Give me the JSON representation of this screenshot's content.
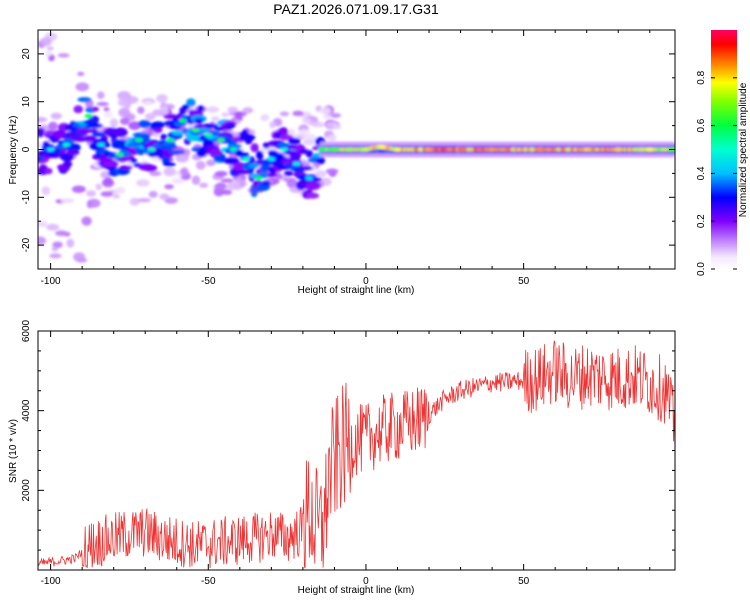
{
  "chart_data": [
    {
      "type": "heatmap",
      "title": "PAZ1.2026.071.09.17.G31",
      "xlabel": "Height of straight line (km)",
      "ylabel": "Frequency (Hz)",
      "xlim": [
        -104,
        98
      ],
      "ylim": [
        -25,
        25
      ],
      "xticks": [
        -100,
        -50,
        0,
        50
      ],
      "xtick_labels": [
        "-100",
        "-50",
        "0",
        "50"
      ],
      "yticks": [
        -20,
        -10,
        0,
        10,
        20
      ],
      "ytick_labels": [
        "-20",
        "-10",
        "0",
        "10",
        "20"
      ],
      "colorbar": {
        "label": "Normalized spectral amplitude",
        "range": [
          0.0,
          1.0
        ],
        "ticks": [
          0.0,
          0.2,
          0.4,
          0.6,
          0.8
        ],
        "tick_labels": [
          "0.0",
          "0.2",
          "0.4",
          "0.6",
          "0.8"
        ]
      },
      "ridge": [
        {
          "x": -100,
          "f": 0,
          "a": 0.3
        },
        {
          "x": -95,
          "f": 1,
          "a": 0.35
        },
        {
          "x": -88,
          "f": 7,
          "a": 0.5
        },
        {
          "x": -84,
          "f": 1,
          "a": 0.3
        },
        {
          "x": -78,
          "f": -1,
          "a": 0.45
        },
        {
          "x": -72,
          "f": 2,
          "a": 0.5
        },
        {
          "x": -68,
          "f": 0,
          "a": 0.4
        },
        {
          "x": -62,
          "f": 2,
          "a": 0.45
        },
        {
          "x": -58,
          "f": 6,
          "a": 0.5
        },
        {
          "x": -54,
          "f": 4,
          "a": 0.55
        },
        {
          "x": -50,
          "f": 3,
          "a": 0.4
        },
        {
          "x": -46,
          "f": 2,
          "a": 0.55
        },
        {
          "x": -42,
          "f": 0,
          "a": 0.4
        },
        {
          "x": -38,
          "f": -2,
          "a": 0.35
        },
        {
          "x": -34,
          "f": -6,
          "a": 0.5
        },
        {
          "x": -30,
          "f": -2,
          "a": 0.3
        },
        {
          "x": -26,
          "f": 0,
          "a": 0.35
        },
        {
          "x": -22,
          "f": -3,
          "a": 0.3
        },
        {
          "x": -18,
          "f": -6,
          "a": 0.25
        },
        {
          "x": -14,
          "f": 0,
          "a": 0.55
        },
        {
          "x": -10,
          "f": 0,
          "a": 0.6
        },
        {
          "x": -5,
          "f": 0,
          "a": 0.7
        },
        {
          "x": 0,
          "f": 0,
          "a": 0.75
        },
        {
          "x": 5,
          "f": 0.5,
          "a": 0.8
        },
        {
          "x": 10,
          "f": 0,
          "a": 0.8
        },
        {
          "x": 20,
          "f": 0,
          "a": 0.9
        },
        {
          "x": 30,
          "f": 0,
          "a": 0.95
        },
        {
          "x": 40,
          "f": 0,
          "a": 0.9
        },
        {
          "x": 55,
          "f": 0,
          "a": 0.92
        },
        {
          "x": 70,
          "f": 0,
          "a": 0.85
        },
        {
          "x": 80,
          "f": 0,
          "a": 0.85
        },
        {
          "x": 90,
          "f": 0,
          "a": 0.8
        },
        {
          "x": 97,
          "f": 0,
          "a": 0.6
        }
      ]
    },
    {
      "type": "line",
      "xlabel": "Height of straight line (km)",
      "ylabel": "SNR (10 * v/v)",
      "xlim": [
        -104,
        98
      ],
      "ylim": [
        0,
        6000
      ],
      "xticks": [
        -100,
        -50,
        0,
        50
      ],
      "xtick_labels": [
        "-100",
        "-50",
        "0",
        "50"
      ],
      "yticks": [
        2000,
        4000,
        6000
      ],
      "ytick_labels": [
        "2000",
        "4000",
        "6000"
      ],
      "color": "#ee3333",
      "series": [
        {
          "name": "SNR",
          "x": [
            -104,
            -100,
            -95,
            -92,
            -88,
            -85,
            -80,
            -75,
            -70,
            -65,
            -60,
            -55,
            -50,
            -45,
            -40,
            -35,
            -30,
            -25,
            -20,
            -18,
            -15,
            -13,
            -12,
            -10,
            -8,
            -5,
            0,
            5,
            10,
            15,
            20,
            25,
            30,
            40,
            50,
            55,
            60,
            65,
            70,
            75,
            80,
            85,
            90,
            95,
            98
          ],
          "y": [
            150,
            200,
            250,
            300,
            600,
            700,
            800,
            900,
            950,
            800,
            700,
            600,
            650,
            700,
            750,
            800,
            900,
            800,
            1000,
            1500,
            900,
            1200,
            2300,
            2700,
            3000,
            3200,
            3300,
            3500,
            3600,
            3700,
            3900,
            4300,
            4500,
            4700,
            4750,
            4800,
            5000,
            4800,
            4900,
            4850,
            4800,
            4850,
            4700,
            4500,
            3600
          ]
        }
      ]
    }
  ]
}
